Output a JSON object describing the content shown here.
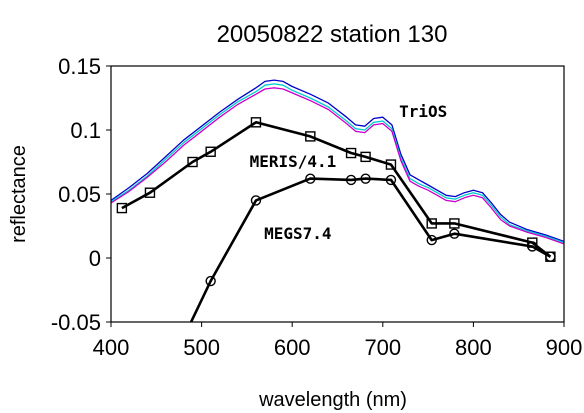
{
  "chart_data": {
    "type": "line",
    "title": "20050822 station 130",
    "xlabel": "wavelength (nm)",
    "ylabel": "reflectance",
    "xlim": [
      400,
      900
    ],
    "ylim": [
      -0.05,
      0.15
    ],
    "x_ticks": [
      400,
      500,
      600,
      700,
      800,
      900
    ],
    "x_tick_labels": [
      "400",
      "500",
      "600",
      "700",
      "800",
      "900"
    ],
    "y_ticks": [
      -0.05,
      0,
      0.05,
      0.1,
      0.15
    ],
    "y_tick_labels": [
      "-0.05",
      "0",
      "0.05",
      "0.1",
      "0.15"
    ],
    "grid": false,
    "legend": "none",
    "annotations": [
      {
        "text": "TriOS",
        "x": 718,
        "y": 0.11
      },
      {
        "text": "MERIS/4.1",
        "x": 553,
        "y": 0.071
      },
      {
        "text": "MEGS7.4",
        "x": 569,
        "y": 0.015
      }
    ],
    "series": [
      {
        "marker": "square",
        "color": "#000000",
        "x": [
          412,
          443,
          490,
          510,
          560,
          620,
          665,
          681,
          709,
          754,
          779,
          865,
          885
        ],
        "y": [
          0.039,
          0.051,
          0.075,
          0.083,
          0.106,
          0.095,
          0.082,
          0.079,
          0.073,
          0.027,
          0.027,
          0.012,
          0.001
        ]
      },
      {
        "marker": "circle",
        "color": "#000000",
        "x": [
          485,
          510,
          560,
          620,
          665,
          681,
          709,
          754,
          779,
          865,
          885
        ],
        "y": [
          -0.055,
          -0.018,
          0.045,
          0.062,
          0.061,
          0.062,
          0.061,
          0.014,
          0.019,
          0.009,
          0.001
        ]
      },
      {
        "marker": "none",
        "color": "#0000cc",
        "x": [
          400,
          420,
          440,
          460,
          480,
          500,
          520,
          540,
          560,
          570,
          580,
          590,
          600,
          620,
          640,
          660,
          670,
          680,
          690,
          700,
          710,
          720,
          730,
          740,
          750,
          760,
          770,
          780,
          790,
          800,
          810,
          820,
          830,
          840,
          860,
          880,
          900
        ],
        "y": [
          0.045,
          0.055,
          0.066,
          0.079,
          0.092,
          0.103,
          0.114,
          0.124,
          0.133,
          0.138,
          0.139,
          0.138,
          0.134,
          0.128,
          0.121,
          0.11,
          0.104,
          0.103,
          0.109,
          0.11,
          0.104,
          0.081,
          0.065,
          0.061,
          0.057,
          0.053,
          0.049,
          0.048,
          0.051,
          0.053,
          0.051,
          0.043,
          0.034,
          0.028,
          0.022,
          0.018,
          0.013
        ]
      },
      {
        "marker": "none",
        "color": "#00cccc",
        "x": [
          400,
          420,
          440,
          460,
          480,
          500,
          520,
          540,
          560,
          570,
          580,
          590,
          600,
          620,
          640,
          660,
          670,
          680,
          690,
          700,
          710,
          720,
          730,
          740,
          750,
          760,
          770,
          780,
          790,
          800,
          810,
          820,
          830,
          840,
          860,
          880,
          900
        ],
        "y": [
          0.044,
          0.053,
          0.064,
          0.077,
          0.09,
          0.101,
          0.112,
          0.122,
          0.13,
          0.135,
          0.136,
          0.135,
          0.131,
          0.125,
          0.118,
          0.107,
          0.101,
          0.1,
          0.106,
          0.107,
          0.101,
          0.078,
          0.062,
          0.058,
          0.055,
          0.051,
          0.047,
          0.046,
          0.049,
          0.051,
          0.049,
          0.041,
          0.032,
          0.026,
          0.021,
          0.017,
          0.012
        ]
      },
      {
        "marker": "none",
        "color": "#cc00cc",
        "x": [
          400,
          420,
          440,
          460,
          480,
          500,
          520,
          540,
          560,
          570,
          580,
          590,
          600,
          620,
          640,
          660,
          670,
          680,
          690,
          700,
          710,
          720,
          730,
          740,
          750,
          760,
          770,
          780,
          790,
          800,
          810,
          820,
          830,
          840,
          860,
          880,
          900
        ],
        "y": [
          0.043,
          0.052,
          0.063,
          0.075,
          0.088,
          0.099,
          0.11,
          0.12,
          0.128,
          0.132,
          0.133,
          0.132,
          0.129,
          0.123,
          0.116,
          0.105,
          0.099,
          0.098,
          0.104,
          0.105,
          0.099,
          0.076,
          0.06,
          0.056,
          0.053,
          0.049,
          0.045,
          0.044,
          0.047,
          0.049,
          0.047,
          0.039,
          0.03,
          0.025,
          0.02,
          0.016,
          0.011
        ]
      }
    ]
  }
}
